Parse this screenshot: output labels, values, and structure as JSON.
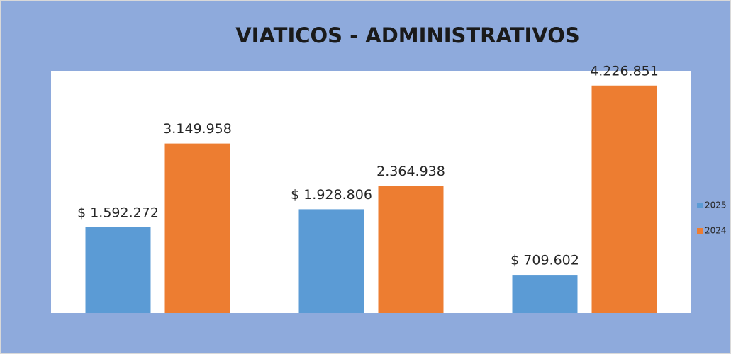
{
  "chart_data": {
    "type": "bar",
    "title": "VIATICOS - ADMINISTRATIVOS",
    "categories": [
      null,
      null,
      null
    ],
    "series": [
      {
        "name": "2025",
        "color": "#5b9bd5",
        "values": [
          1592272,
          1928806,
          709602
        ],
        "value_labels": [
          "$ 1.592.272",
          "$ 1.928.806",
          "$ 709.602"
        ]
      },
      {
        "name": "2024",
        "color": "#ed7d31",
        "values": [
          3149958,
          2364938,
          4226851
        ],
        "value_labels": [
          "3.149.958",
          "2.364.938",
          "4.226.851"
        ]
      }
    ],
    "ylim": [
      0,
      4500000
    ],
    "legend": "right"
  }
}
